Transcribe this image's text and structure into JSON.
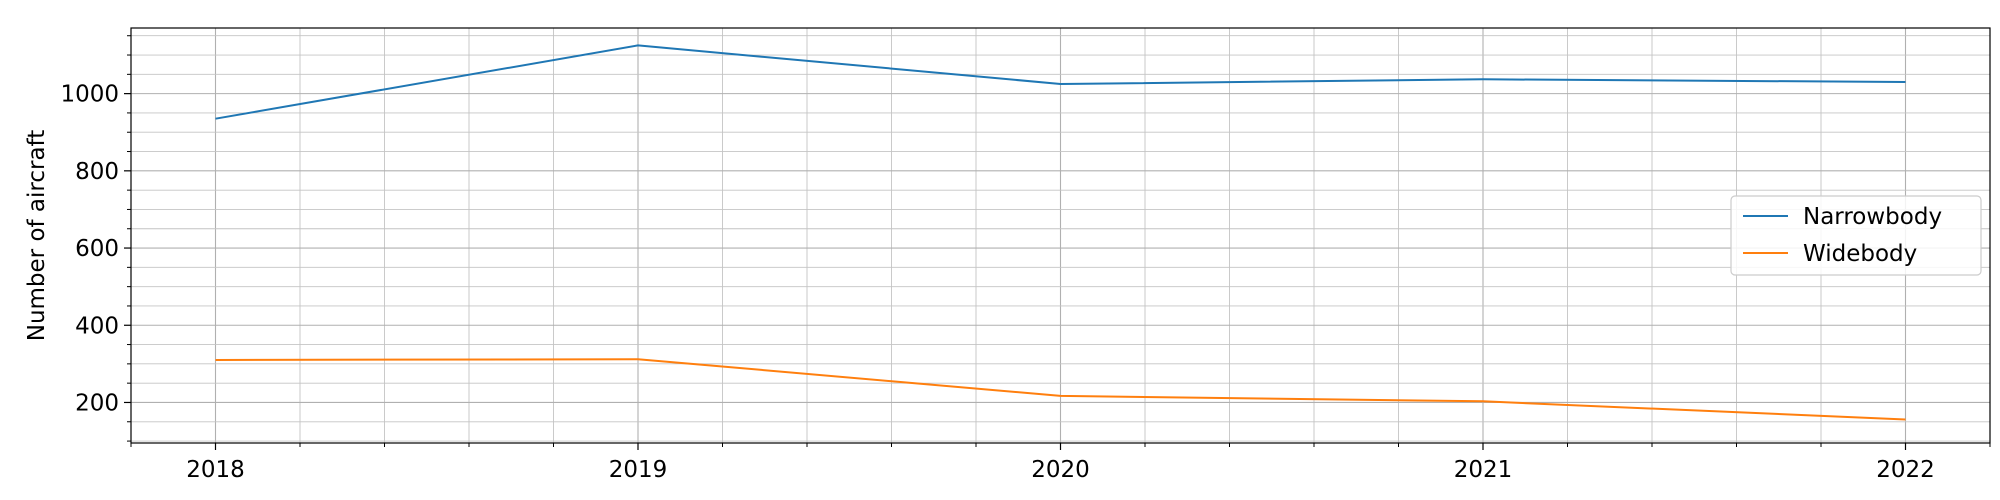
{
  "chart_data": {
    "type": "line",
    "title": "",
    "xlabel": "",
    "ylabel": "Number of aircraft",
    "x": [
      2018,
      2019,
      2020,
      2021,
      2022
    ],
    "x_ticks": [
      "2018",
      "2019",
      "2020",
      "2021",
      "2022"
    ],
    "xlim": [
      2017.8,
      2022.2
    ],
    "ylim": [
      95,
      1170
    ],
    "y_ticks": [
      200,
      400,
      600,
      800,
      1000
    ],
    "y_tick_labels": [
      "200",
      "400",
      "600",
      "800",
      "1000"
    ],
    "grid": true,
    "minor_grid": true,
    "legend_position": "center-right",
    "series": [
      {
        "name": "Narrowbody",
        "color": "#1f77b4",
        "values": [
          935,
          1125,
          1025,
          1037,
          1030
        ]
      },
      {
        "name": "Widebody",
        "color": "#ff7f0e",
        "values": [
          310,
          312,
          217,
          203,
          156
        ]
      }
    ]
  }
}
